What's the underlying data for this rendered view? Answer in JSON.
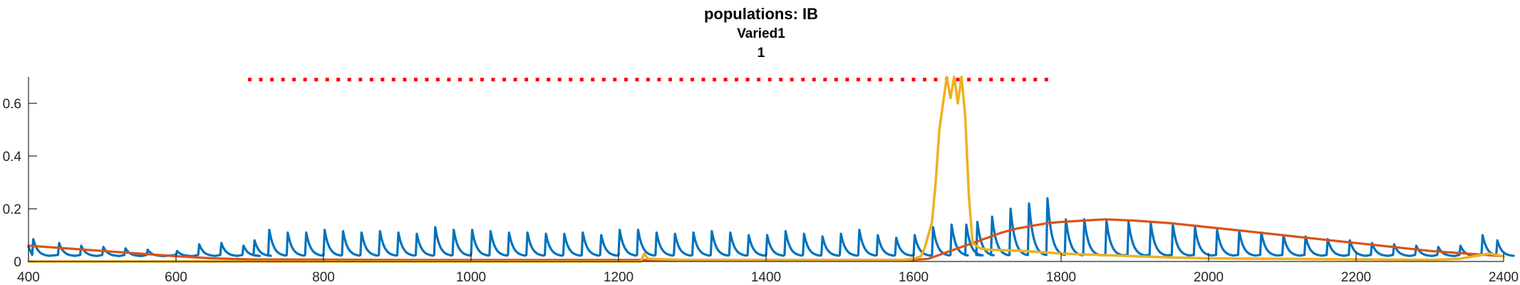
{
  "chart_data": {
    "type": "line",
    "title": "populations: IB",
    "subtitle_lines": [
      "Varied1",
      "1"
    ],
    "xlabel": "",
    "ylabel": "",
    "xlim": [
      400,
      2400
    ],
    "ylim": [
      0,
      0.7
    ],
    "grid": false,
    "legend": "none",
    "x_ticks": [
      400,
      600,
      800,
      1000,
      1200,
      1400,
      1600,
      1800,
      2000,
      2200,
      2400
    ],
    "y_ticks": [
      0,
      0.2,
      0.4,
      0.6
    ],
    "y_tick_labels": [
      "0",
      "0.2",
      "0.4",
      "0.6"
    ],
    "marker_line": {
      "y": 0.69,
      "x_start": 700,
      "x_end": 1780,
      "color": "#ff0000"
    },
    "series": [
      {
        "color": "#0072bd",
        "pulses": [
          [
            405,
            0.085
          ],
          [
            440,
            0.07
          ],
          [
            470,
            0.06
          ],
          [
            500,
            0.055
          ],
          [
            530,
            0.05
          ],
          [
            560,
            0.045
          ],
          [
            600,
            0.04
          ],
          [
            630,
            0.065
          ],
          [
            660,
            0.07
          ],
          [
            690,
            0.06
          ],
          [
            705,
            0.08
          ],
          [
            725,
            0.12
          ],
          [
            750,
            0.11
          ],
          [
            775,
            0.11
          ],
          [
            800,
            0.12
          ],
          [
            825,
            0.115
          ],
          [
            850,
            0.11
          ],
          [
            875,
            0.115
          ],
          [
            900,
            0.11
          ],
          [
            925,
            0.105
          ],
          [
            950,
            0.13
          ],
          [
            975,
            0.12
          ],
          [
            1000,
            0.12
          ],
          [
            1025,
            0.115
          ],
          [
            1050,
            0.11
          ],
          [
            1075,
            0.11
          ],
          [
            1100,
            0.105
          ],
          [
            1125,
            0.105
          ],
          [
            1150,
            0.11
          ],
          [
            1175,
            0.1
          ],
          [
            1200,
            0.12
          ],
          [
            1225,
            0.12
          ],
          [
            1250,
            0.11
          ],
          [
            1275,
            0.105
          ],
          [
            1300,
            0.11
          ],
          [
            1325,
            0.115
          ],
          [
            1350,
            0.11
          ],
          [
            1375,
            0.1
          ],
          [
            1400,
            0.1
          ],
          [
            1425,
            0.115
          ],
          [
            1450,
            0.105
          ],
          [
            1475,
            0.095
          ],
          [
            1500,
            0.105
          ],
          [
            1525,
            0.12
          ],
          [
            1550,
            0.1
          ],
          [
            1575,
            0.09
          ],
          [
            1600,
            0.1
          ],
          [
            1625,
            0.13
          ],
          [
            1650,
            0.14
          ],
          [
            1670,
            0.14
          ],
          [
            1685,
            0.15
          ],
          [
            1705,
            0.17
          ],
          [
            1730,
            0.2
          ],
          [
            1755,
            0.22
          ],
          [
            1780,
            0.24
          ],
          [
            1805,
            0.16
          ],
          [
            1830,
            0.16
          ],
          [
            1860,
            0.155
          ],
          [
            1890,
            0.15
          ],
          [
            1920,
            0.145
          ],
          [
            1950,
            0.14
          ],
          [
            1980,
            0.13
          ],
          [
            2010,
            0.12
          ],
          [
            2040,
            0.115
          ],
          [
            2070,
            0.11
          ],
          [
            2100,
            0.1
          ],
          [
            2130,
            0.095
          ],
          [
            2160,
            0.085
          ],
          [
            2190,
            0.08
          ],
          [
            2220,
            0.07
          ],
          [
            2250,
            0.065
          ],
          [
            2280,
            0.06
          ],
          [
            2310,
            0.055
          ],
          [
            2340,
            0.06
          ],
          [
            2370,
            0.1
          ],
          [
            2390,
            0.08
          ]
        ]
      },
      {
        "color": "#d95319",
        "points": [
          [
            400,
            0.06
          ],
          [
            450,
            0.05
          ],
          [
            500,
            0.04
          ],
          [
            550,
            0.03
          ],
          [
            600,
            0.02
          ],
          [
            650,
            0.012
          ],
          [
            700,
            0.008
          ],
          [
            800,
            0.007
          ],
          [
            900,
            0.006
          ],
          [
            1000,
            0.006
          ],
          [
            1100,
            0.006
          ],
          [
            1200,
            0.006
          ],
          [
            1300,
            0.006
          ],
          [
            1400,
            0.006
          ],
          [
            1500,
            0.006
          ],
          [
            1600,
            0.006
          ],
          [
            1620,
            0.01
          ],
          [
            1640,
            0.03
          ],
          [
            1660,
            0.05
          ],
          [
            1680,
            0.07
          ],
          [
            1700,
            0.09
          ],
          [
            1720,
            0.11
          ],
          [
            1740,
            0.125
          ],
          [
            1760,
            0.135
          ],
          [
            1780,
            0.145
          ],
          [
            1800,
            0.15
          ],
          [
            1830,
            0.155
          ],
          [
            1860,
            0.16
          ],
          [
            1900,
            0.155
          ],
          [
            1950,
            0.145
          ],
          [
            2000,
            0.13
          ],
          [
            2050,
            0.115
          ],
          [
            2100,
            0.1
          ],
          [
            2150,
            0.085
          ],
          [
            2200,
            0.07
          ],
          [
            2250,
            0.055
          ],
          [
            2300,
            0.04
          ],
          [
            2350,
            0.03
          ],
          [
            2400,
            0.02
          ]
        ]
      },
      {
        "color": "#edb120",
        "points": [
          [
            400,
            0.0
          ],
          [
            1000,
            0.0
          ],
          [
            1230,
            0.0
          ],
          [
            1235,
            0.03
          ],
          [
            1240,
            0.01
          ],
          [
            1300,
            0.005
          ],
          [
            1400,
            0.005
          ],
          [
            1500,
            0.005
          ],
          [
            1580,
            0.005
          ],
          [
            1600,
            0.01
          ],
          [
            1610,
            0.02
          ],
          [
            1615,
            0.05
          ],
          [
            1620,
            0.1
          ],
          [
            1625,
            0.15
          ],
          [
            1630,
            0.3
          ],
          [
            1635,
            0.5
          ],
          [
            1640,
            0.6
          ],
          [
            1645,
            0.7
          ],
          [
            1650,
            0.62
          ],
          [
            1655,
            0.7
          ],
          [
            1660,
            0.6
          ],
          [
            1665,
            0.7
          ],
          [
            1670,
            0.55
          ],
          [
            1675,
            0.25
          ],
          [
            1680,
            0.07
          ],
          [
            1690,
            0.05
          ],
          [
            1700,
            0.045
          ],
          [
            1750,
            0.04
          ],
          [
            1800,
            0.03
          ],
          [
            1850,
            0.025
          ],
          [
            1900,
            0.02
          ],
          [
            1950,
            0.015
          ],
          [
            2000,
            0.012
          ],
          [
            2100,
            0.01
          ],
          [
            2200,
            0.008
          ],
          [
            2300,
            0.006
          ],
          [
            2340,
            0.01
          ],
          [
            2360,
            0.02
          ],
          [
            2380,
            0.03
          ],
          [
            2400,
            0.02
          ]
        ]
      }
    ]
  }
}
